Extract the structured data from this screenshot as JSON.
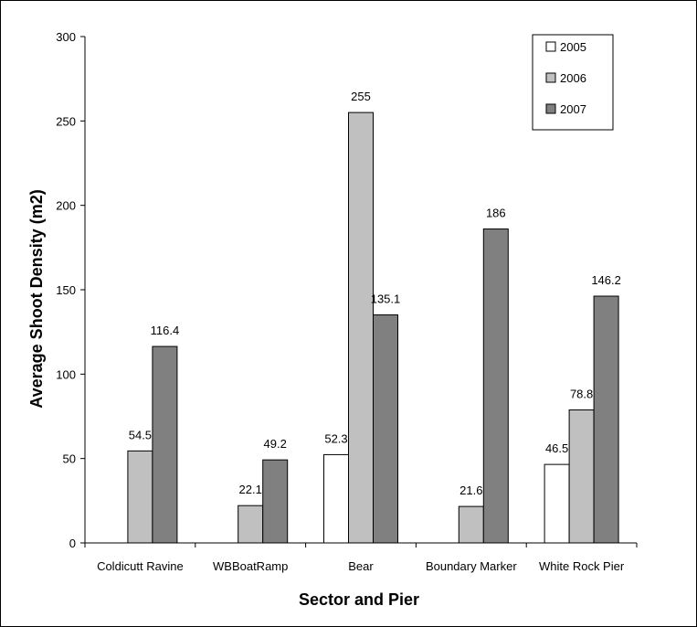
{
  "chart_data": {
    "type": "bar",
    "title": "",
    "xlabel": "Sector and Pier",
    "ylabel": "Average Shoot Density (m2)",
    "ylim": [
      0,
      300
    ],
    "yticks": [
      0,
      50,
      100,
      150,
      200,
      250,
      300
    ],
    "grid": false,
    "legend_position": "top-right",
    "categories": [
      "Coldicutt Ravine",
      "WBBoatRamp",
      "Bear",
      "Boundary Marker",
      "White Rock Pier"
    ],
    "series": [
      {
        "name": "2005",
        "color": "#ffffff",
        "values": [
          null,
          null,
          52.3,
          null,
          46.5
        ],
        "labels": [
          "",
          "",
          "52.3",
          "",
          "46.5"
        ]
      },
      {
        "name": "2006",
        "color": "#c0c0c0",
        "values": [
          54.5,
          22.1,
          255,
          21.6,
          78.8
        ],
        "labels": [
          "54.5",
          "22.1",
          "255",
          "21.6",
          "78.8"
        ]
      },
      {
        "name": "2007",
        "color": "#808080",
        "values": [
          116.4,
          49.2,
          135.1,
          186,
          146.2
        ],
        "labels": [
          "116.4",
          "49.2",
          "135.1",
          "186",
          "146.2"
        ]
      }
    ]
  }
}
